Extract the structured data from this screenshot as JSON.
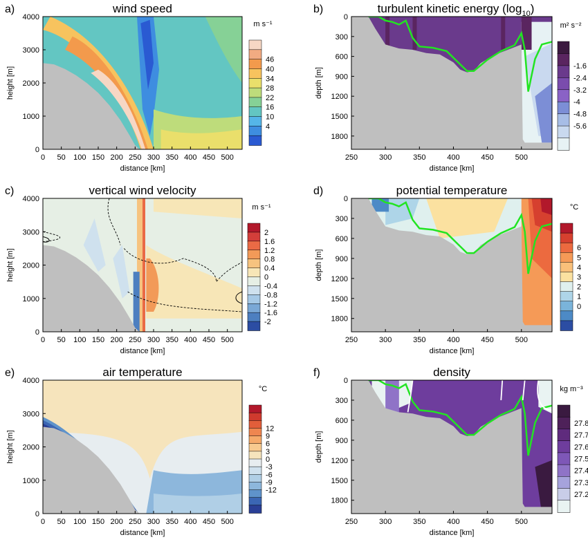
{
  "panels": [
    {
      "letter": "a)",
      "title": "wind speed",
      "side": "atm",
      "xlabel": "distance [km]",
      "ylabel": "height [m]",
      "xlim": [
        0,
        540
      ],
      "ylim": [
        0,
        4000
      ],
      "xticks": [
        0,
        50,
        100,
        150,
        200,
        250,
        300,
        350,
        400,
        450,
        500
      ],
      "yticks": [
        0,
        1000,
        2000,
        3000,
        4000
      ],
      "unit": "m s⁻¹",
      "cbar_labels": [
        "46",
        "40",
        "34",
        "28",
        "22",
        "16",
        "10",
        "4"
      ],
      "cbar_colors": [
        "#f7d7c4",
        "#f2ab82",
        "#f39a4c",
        "#f7c35e",
        "#eadf6b",
        "#bedc7b",
        "#86d196",
        "#63c6c2",
        "#55b5e8",
        "#3e8de0",
        "#2a5ad2"
      ],
      "bg": "#63c6c2"
    },
    {
      "letter": "b)",
      "title": "turbulent kinetic energy (log",
      "title_sub": "10",
      "title_end": ")",
      "side": "ocean",
      "xlabel": "distance [km]",
      "ylabel": "depth [m]",
      "xlim": [
        250,
        545
      ],
      "ylim": [
        0,
        2000
      ],
      "xticks": [
        250,
        300,
        350,
        400,
        450,
        500
      ],
      "yticks": [
        0,
        300,
        600,
        900,
        1200,
        1500,
        1800
      ],
      "unit": "m² s⁻²",
      "cbar_labels": [
        "-1.6",
        "-2.4",
        "-3.2",
        "-4",
        "-4.8",
        "-5.6"
      ],
      "cbar_colors": [
        "#3b1a3f",
        "#5a2560",
        "#6a3a8c",
        "#7a4cad",
        "#8a62c6",
        "#7c8ed6",
        "#a7bde6",
        "#c9d9ef",
        "#e7f2f4"
      ],
      "bg": "#6a3a8c"
    },
    {
      "letter": "c)",
      "title": "vertical wind velocity",
      "side": "atm",
      "xlabel": "distance [km]",
      "ylabel": "height [m]",
      "xlim": [
        0,
        540
      ],
      "ylim": [
        0,
        4000
      ],
      "xticks": [
        0,
        50,
        100,
        150,
        200,
        250,
        300,
        350,
        400,
        450,
        500
      ],
      "yticks": [
        0,
        1000,
        2000,
        3000,
        4000
      ],
      "unit": "m s⁻¹",
      "cbar_labels": [
        "2",
        "1.6",
        "1.2",
        "0.8",
        "0.4",
        "0",
        "-0.4",
        "-0.8",
        "-1.2",
        "-1.6",
        "-2"
      ],
      "cbar_colors": [
        "#b2182b",
        "#d33e3a",
        "#ea6a45",
        "#f29a58",
        "#f6c37f",
        "#f7e6b7",
        "#e6efe5",
        "#cfe1ee",
        "#a6c9e6",
        "#7aa8d6",
        "#4d7fc0",
        "#2c4da3"
      ],
      "bg": "#e6efe5"
    },
    {
      "letter": "d)",
      "title": "potential temperature",
      "side": "ocean",
      "xlabel": "distance [km]",
      "ylabel": "depth [m]",
      "xlim": [
        250,
        545
      ],
      "ylim": [
        0,
        2000
      ],
      "xticks": [
        250,
        300,
        350,
        400,
        450,
        500
      ],
      "yticks": [
        0,
        300,
        600,
        900,
        1200,
        1500,
        1800
      ],
      "unit": "°C",
      "cbar_labels": [
        "6",
        "5",
        "4",
        "3",
        "2",
        "1",
        "0"
      ],
      "cbar_colors": [
        "#b2182b",
        "#d6402f",
        "#ec6a3f",
        "#f59a57",
        "#f9c07a",
        "#fbe1a0",
        "#dff0ee",
        "#aed5e8",
        "#7ab4da",
        "#4d8ac6",
        "#2c4da3"
      ],
      "bg": "#dff0ee"
    },
    {
      "letter": "e)",
      "title": "air temperature",
      "side": "atm",
      "xlabel": "distance [km]",
      "ylabel": "height [m]",
      "xlim": [
        0,
        540
      ],
      "ylim": [
        0,
        4000
      ],
      "xticks": [
        0,
        50,
        100,
        150,
        200,
        250,
        300,
        350,
        400,
        450,
        500
      ],
      "yticks": [
        0,
        1000,
        2000,
        3000,
        4000
      ],
      "unit": "°C",
      "cbar_labels": [
        "12",
        "9",
        "6",
        "3",
        "0",
        "-3",
        "-6",
        "-9",
        "-12"
      ],
      "cbar_colors": [
        "#b2182b",
        "#cf3a2e",
        "#e25e3a",
        "#ef8650",
        "#f6aa6a",
        "#f8ca8f",
        "#f6e4bc",
        "#e7edf0",
        "#cfe1ee",
        "#b0cfe6",
        "#8db7dc",
        "#5f93cb",
        "#3b66b4",
        "#2a3f96"
      ],
      "bg": "#e7edf0"
    },
    {
      "letter": "f)",
      "title": "density",
      "side": "ocean",
      "xlabel": "distance [km]",
      "ylabel": "depth [m]",
      "xlim": [
        250,
        545
      ],
      "ylim": [
        0,
        2000
      ],
      "xticks": [
        250,
        300,
        350,
        400,
        450,
        500
      ],
      "yticks": [
        0,
        300,
        600,
        900,
        1200,
        1500,
        1800
      ],
      "unit": "kg m⁻³",
      "cbar_labels": [
        "27.8",
        "27.7",
        "27.6",
        "27.5",
        "27.4",
        "27.3",
        "27.2"
      ],
      "cbar_colors": [
        "#3a1a40",
        "#4e2159",
        "#5f2b7d",
        "#6e3d9d",
        "#7e57b7",
        "#8f73c7",
        "#a6a3dc",
        "#c9cde8",
        "#e9f3f2"
      ],
      "bg": "#6e3d9d"
    }
  ],
  "chart_data": [
    {
      "type": "heatmap",
      "title": "wind speed",
      "xlabel": "distance [km]",
      "ylabel": "height [m]",
      "colorbar_unit": "m s-1",
      "colorbar_levels": [
        4,
        10,
        16,
        22,
        28,
        34,
        40,
        46
      ],
      "xlim": [
        0,
        540
      ],
      "ylim": [
        0,
        4000
      ]
    },
    {
      "type": "heatmap",
      "title": "turbulent kinetic energy (log10)",
      "xlabel": "distance [km]",
      "ylabel": "depth [m]",
      "colorbar_unit": "m2 s-2",
      "colorbar_levels": [
        -5.6,
        -4.8,
        -4,
        -3.2,
        -2.4,
        -1.6
      ],
      "xlim": [
        250,
        545
      ],
      "ylim": [
        0,
        2000
      ]
    },
    {
      "type": "heatmap",
      "title": "vertical wind velocity",
      "xlabel": "distance [km]",
      "ylabel": "height [m]",
      "colorbar_unit": "m s-1",
      "colorbar_levels": [
        -2,
        -1.6,
        -1.2,
        -0.8,
        -0.4,
        0,
        0.4,
        0.8,
        1.2,
        1.6,
        2
      ],
      "xlim": [
        0,
        540
      ],
      "ylim": [
        0,
        4000
      ]
    },
    {
      "type": "heatmap",
      "title": "potential temperature",
      "xlabel": "distance [km]",
      "ylabel": "depth [m]",
      "colorbar_unit": "°C",
      "colorbar_levels": [
        0,
        1,
        2,
        3,
        4,
        5,
        6
      ],
      "xlim": [
        250,
        545
      ],
      "ylim": [
        0,
        2000
      ]
    },
    {
      "type": "heatmap",
      "title": "air temperature",
      "xlabel": "distance [km]",
      "ylabel": "height [m]",
      "colorbar_unit": "°C",
      "colorbar_levels": [
        -12,
        -9,
        -6,
        -3,
        0,
        3,
        6,
        9,
        12
      ],
      "xlim": [
        0,
        540
      ],
      "ylim": [
        0,
        4000
      ]
    },
    {
      "type": "heatmap",
      "title": "density",
      "xlabel": "distance [km]",
      "ylabel": "depth [m]",
      "colorbar_unit": "kg m-3",
      "colorbar_levels": [
        27.2,
        27.3,
        27.4,
        27.5,
        27.6,
        27.7,
        27.8
      ],
      "xlim": [
        250,
        545
      ],
      "ylim": [
        0,
        2000
      ]
    }
  ],
  "terrain": {
    "atm_surface_km": [
      0,
      30,
      60,
      90,
      120,
      150,
      180,
      210,
      235,
      250,
      262,
      270
    ],
    "atm_surface_m": [
      2600,
      2560,
      2420,
      2230,
      1990,
      1700,
      1330,
      880,
      420,
      120,
      0,
      0
    ],
    "ocean_bottom_km": [
      250,
      275,
      285,
      300,
      320,
      340,
      360,
      380,
      400,
      410,
      420,
      430,
      440,
      460,
      480,
      500,
      502,
      505,
      545
    ],
    "ocean_bottom_m": [
      0,
      0,
      180,
      420,
      480,
      500,
      550,
      570,
      690,
      800,
      840,
      820,
      700,
      580,
      500,
      420,
      1850,
      1900,
      1900
    ],
    "mld_km": [
      275,
      290,
      300,
      310,
      320,
      330,
      340,
      350,
      370,
      390,
      410,
      420,
      430,
      450,
      470,
      490,
      500,
      505,
      510,
      520,
      530,
      545
    ],
    "mld_m": [
      0,
      0,
      60,
      80,
      120,
      60,
      320,
      450,
      470,
      520,
      720,
      820,
      820,
      650,
      520,
      430,
      250,
      500,
      1130,
      640,
      420,
      380
    ]
  },
  "colors": {
    "terrain": "#bfbfbf",
    "mld_line": "#22e422",
    "frame": "#000000"
  }
}
